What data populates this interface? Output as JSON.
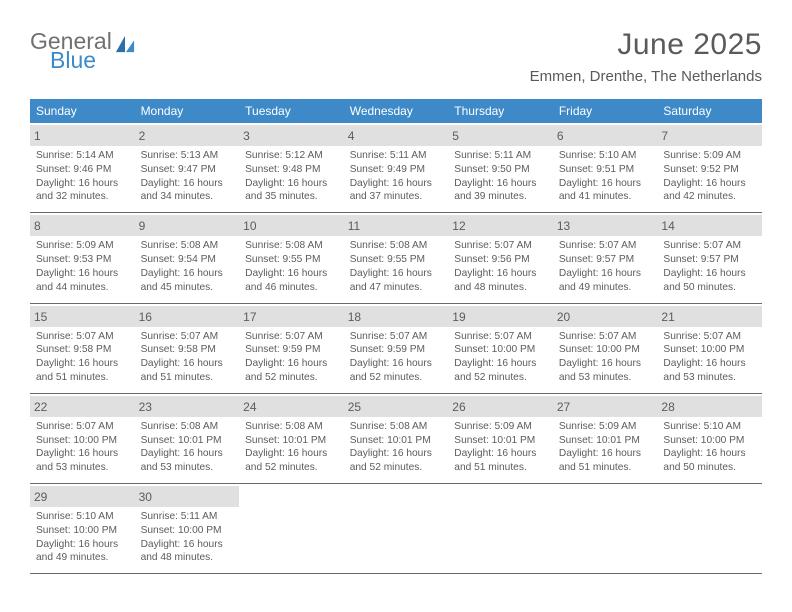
{
  "logo": {
    "line1": "General",
    "line2": "Blue"
  },
  "title": "June 2025",
  "location": "Emmen, Drenthe, The Netherlands",
  "weekdays": [
    "Sunday",
    "Monday",
    "Tuesday",
    "Wednesday",
    "Thursday",
    "Friday",
    "Saturday"
  ],
  "colors": {
    "header_bg": "#3e8ac9",
    "header_text": "#ffffff",
    "daynum_bg": "#e0e0e0",
    "text": "#5a5a5a",
    "rule": "#6a6a6a"
  },
  "fonts": {
    "title_size": 30,
    "location_size": 15,
    "weekday_size": 12,
    "daynum_size": 12,
    "body_size": 10.2
  },
  "days": [
    {
      "n": "1",
      "sunrise": "Sunrise: 5:14 AM",
      "sunset": "Sunset: 9:46 PM",
      "d1": "Daylight: 16 hours",
      "d2": "and 32 minutes."
    },
    {
      "n": "2",
      "sunrise": "Sunrise: 5:13 AM",
      "sunset": "Sunset: 9:47 PM",
      "d1": "Daylight: 16 hours",
      "d2": "and 34 minutes."
    },
    {
      "n": "3",
      "sunrise": "Sunrise: 5:12 AM",
      "sunset": "Sunset: 9:48 PM",
      "d1": "Daylight: 16 hours",
      "d2": "and 35 minutes."
    },
    {
      "n": "4",
      "sunrise": "Sunrise: 5:11 AM",
      "sunset": "Sunset: 9:49 PM",
      "d1": "Daylight: 16 hours",
      "d2": "and 37 minutes."
    },
    {
      "n": "5",
      "sunrise": "Sunrise: 5:11 AM",
      "sunset": "Sunset: 9:50 PM",
      "d1": "Daylight: 16 hours",
      "d2": "and 39 minutes."
    },
    {
      "n": "6",
      "sunrise": "Sunrise: 5:10 AM",
      "sunset": "Sunset: 9:51 PM",
      "d1": "Daylight: 16 hours",
      "d2": "and 41 minutes."
    },
    {
      "n": "7",
      "sunrise": "Sunrise: 5:09 AM",
      "sunset": "Sunset: 9:52 PM",
      "d1": "Daylight: 16 hours",
      "d2": "and 42 minutes."
    },
    {
      "n": "8",
      "sunrise": "Sunrise: 5:09 AM",
      "sunset": "Sunset: 9:53 PM",
      "d1": "Daylight: 16 hours",
      "d2": "and 44 minutes."
    },
    {
      "n": "9",
      "sunrise": "Sunrise: 5:08 AM",
      "sunset": "Sunset: 9:54 PM",
      "d1": "Daylight: 16 hours",
      "d2": "and 45 minutes."
    },
    {
      "n": "10",
      "sunrise": "Sunrise: 5:08 AM",
      "sunset": "Sunset: 9:55 PM",
      "d1": "Daylight: 16 hours",
      "d2": "and 46 minutes."
    },
    {
      "n": "11",
      "sunrise": "Sunrise: 5:08 AM",
      "sunset": "Sunset: 9:55 PM",
      "d1": "Daylight: 16 hours",
      "d2": "and 47 minutes."
    },
    {
      "n": "12",
      "sunrise": "Sunrise: 5:07 AM",
      "sunset": "Sunset: 9:56 PM",
      "d1": "Daylight: 16 hours",
      "d2": "and 48 minutes."
    },
    {
      "n": "13",
      "sunrise": "Sunrise: 5:07 AM",
      "sunset": "Sunset: 9:57 PM",
      "d1": "Daylight: 16 hours",
      "d2": "and 49 minutes."
    },
    {
      "n": "14",
      "sunrise": "Sunrise: 5:07 AM",
      "sunset": "Sunset: 9:57 PM",
      "d1": "Daylight: 16 hours",
      "d2": "and 50 minutes."
    },
    {
      "n": "15",
      "sunrise": "Sunrise: 5:07 AM",
      "sunset": "Sunset: 9:58 PM",
      "d1": "Daylight: 16 hours",
      "d2": "and 51 minutes."
    },
    {
      "n": "16",
      "sunrise": "Sunrise: 5:07 AM",
      "sunset": "Sunset: 9:58 PM",
      "d1": "Daylight: 16 hours",
      "d2": "and 51 minutes."
    },
    {
      "n": "17",
      "sunrise": "Sunrise: 5:07 AM",
      "sunset": "Sunset: 9:59 PM",
      "d1": "Daylight: 16 hours",
      "d2": "and 52 minutes."
    },
    {
      "n": "18",
      "sunrise": "Sunrise: 5:07 AM",
      "sunset": "Sunset: 9:59 PM",
      "d1": "Daylight: 16 hours",
      "d2": "and 52 minutes."
    },
    {
      "n": "19",
      "sunrise": "Sunrise: 5:07 AM",
      "sunset": "Sunset: 10:00 PM",
      "d1": "Daylight: 16 hours",
      "d2": "and 52 minutes."
    },
    {
      "n": "20",
      "sunrise": "Sunrise: 5:07 AM",
      "sunset": "Sunset: 10:00 PM",
      "d1": "Daylight: 16 hours",
      "d2": "and 53 minutes."
    },
    {
      "n": "21",
      "sunrise": "Sunrise: 5:07 AM",
      "sunset": "Sunset: 10:00 PM",
      "d1": "Daylight: 16 hours",
      "d2": "and 53 minutes."
    },
    {
      "n": "22",
      "sunrise": "Sunrise: 5:07 AM",
      "sunset": "Sunset: 10:00 PM",
      "d1": "Daylight: 16 hours",
      "d2": "and 53 minutes."
    },
    {
      "n": "23",
      "sunrise": "Sunrise: 5:08 AM",
      "sunset": "Sunset: 10:01 PM",
      "d1": "Daylight: 16 hours",
      "d2": "and 53 minutes."
    },
    {
      "n": "24",
      "sunrise": "Sunrise: 5:08 AM",
      "sunset": "Sunset: 10:01 PM",
      "d1": "Daylight: 16 hours",
      "d2": "and 52 minutes."
    },
    {
      "n": "25",
      "sunrise": "Sunrise: 5:08 AM",
      "sunset": "Sunset: 10:01 PM",
      "d1": "Daylight: 16 hours",
      "d2": "and 52 minutes."
    },
    {
      "n": "26",
      "sunrise": "Sunrise: 5:09 AM",
      "sunset": "Sunset: 10:01 PM",
      "d1": "Daylight: 16 hours",
      "d2": "and 51 minutes."
    },
    {
      "n": "27",
      "sunrise": "Sunrise: 5:09 AM",
      "sunset": "Sunset: 10:01 PM",
      "d1": "Daylight: 16 hours",
      "d2": "and 51 minutes."
    },
    {
      "n": "28",
      "sunrise": "Sunrise: 5:10 AM",
      "sunset": "Sunset: 10:00 PM",
      "d1": "Daylight: 16 hours",
      "d2": "and 50 minutes."
    },
    {
      "n": "29",
      "sunrise": "Sunrise: 5:10 AM",
      "sunset": "Sunset: 10:00 PM",
      "d1": "Daylight: 16 hours",
      "d2": "and 49 minutes."
    },
    {
      "n": "30",
      "sunrise": "Sunrise: 5:11 AM",
      "sunset": "Sunset: 10:00 PM",
      "d1": "Daylight: 16 hours",
      "d2": "and 48 minutes."
    }
  ]
}
